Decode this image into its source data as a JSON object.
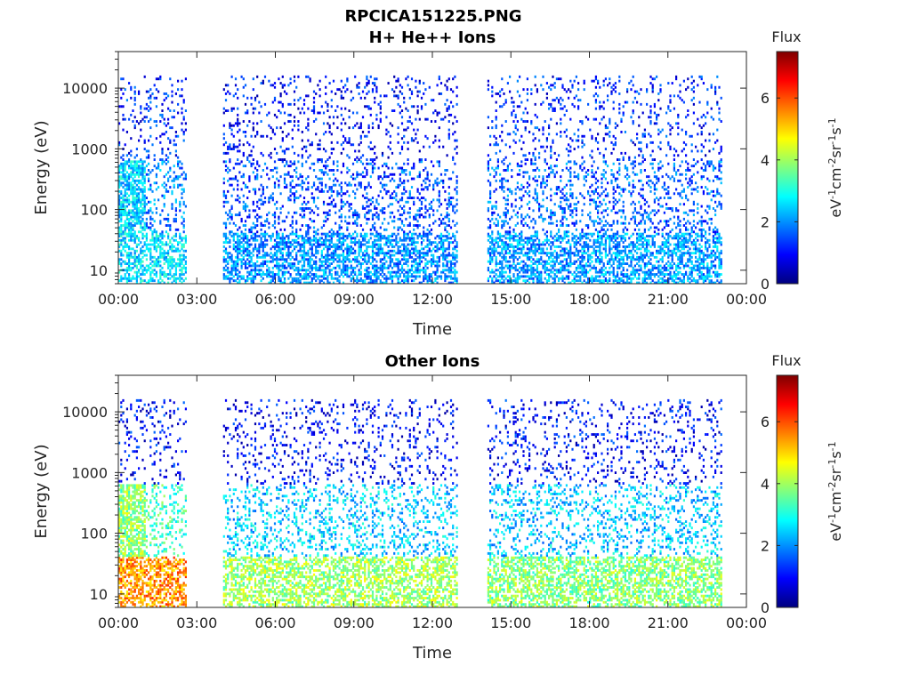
{
  "figure_title": "RPCICA151225.PNG",
  "chart_data": [
    {
      "type": "heatmap",
      "title": "H+ He++ Ions",
      "xlabel": "Time",
      "ylabel": "Energy (eV)",
      "xlim": [
        "00:00",
        "24:00"
      ],
      "x_tick_labels": [
        "00:00",
        "03:00",
        "06:00",
        "09:00",
        "12:00",
        "15:00",
        "18:00",
        "21:00",
        "00:00"
      ],
      "y_scale": "log",
      "ylim": [
        6,
        40000
      ],
      "y_ticks": [
        10,
        100,
        1000,
        10000
      ],
      "y_tick_labels": [
        "10",
        "100",
        "1000",
        "10000"
      ],
      "colorbar": {
        "title": "Flux",
        "label": "eV-1cm-2sr-1s-1",
        "range": [
          0,
          7.5
        ],
        "ticks": [
          0,
          2,
          4,
          6
        ],
        "tick_labels": [
          "0",
          "2",
          "4",
          "6"
        ],
        "colormap": "jet"
      },
      "data_gaps_hours": [
        [
          2.6,
          4.0
        ],
        [
          12.9,
          14.1
        ],
        [
          23.0,
          24.0
        ]
      ],
      "segments": [
        {
          "start": 0.0,
          "end": 2.6,
          "low_energy_flux": 2.6,
          "high_energy_flux": 1.2
        },
        {
          "start": 4.0,
          "end": 12.9,
          "low_energy_flux": 2.0,
          "high_energy_flux": 1.0
        },
        {
          "start": 14.1,
          "end": 23.0,
          "low_energy_flux": 2.1,
          "high_energy_flux": 1.2
        }
      ]
    },
    {
      "type": "heatmap",
      "title": "Other Ions",
      "xlabel": "Time",
      "ylabel": "Energy (eV)",
      "xlim": [
        "00:00",
        "24:00"
      ],
      "x_tick_labels": [
        "00:00",
        "03:00",
        "06:00",
        "09:00",
        "12:00",
        "15:00",
        "18:00",
        "21:00",
        "00:00"
      ],
      "y_scale": "log",
      "ylim": [
        6,
        40000
      ],
      "y_ticks": [
        10,
        100,
        1000,
        10000
      ],
      "y_tick_labels": [
        "10",
        "100",
        "1000",
        "10000"
      ],
      "colorbar": {
        "title": "Flux",
        "label": "eV-1cm-2sr-1s-1",
        "range": [
          0,
          7.5
        ],
        "ticks": [
          0,
          2,
          4,
          6
        ],
        "tick_labels": [
          "0",
          "2",
          "4",
          "6"
        ],
        "colormap": "jet"
      },
      "data_gaps_hours": [
        [
          2.6,
          4.0
        ],
        [
          12.9,
          14.1
        ],
        [
          23.0,
          24.0
        ]
      ],
      "segments": [
        {
          "start": 0.0,
          "end": 2.6,
          "low_energy_flux": 5.5,
          "high_energy_flux": 1.0
        },
        {
          "start": 4.0,
          "end": 12.9,
          "low_energy_flux": 4.0,
          "high_energy_flux": 0.9
        },
        {
          "start": 14.1,
          "end": 23.0,
          "low_energy_flux": 3.8,
          "high_energy_flux": 1.0
        }
      ]
    }
  ]
}
